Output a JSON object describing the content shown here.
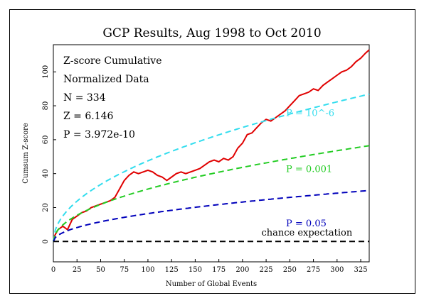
{
  "chart_data": {
    "type": "line",
    "title": "GCP Results, Aug 1998 to Oct 2010",
    "xlabel": "Number of Global Events",
    "ylabel": "Cumsum Z-score",
    "xlim": [
      0,
      334
    ],
    "ylim": [
      -12,
      116
    ],
    "x_ticks": [
      0,
      25,
      50,
      75,
      100,
      125,
      150,
      175,
      200,
      225,
      250,
      275,
      300,
      325
    ],
    "y_ticks": [
      0,
      20,
      40,
      60,
      80,
      100
    ],
    "grid": false,
    "stats": [
      "Z-score Cumulative",
      "Normalized Data",
      "N = 334",
      "Z = 6.146",
      "P = 3.972e-10"
    ],
    "series": [
      {
        "name": "Cumsum Z-score",
        "color": "#e00000",
        "style": "solid",
        "x": [
          0,
          5,
          10,
          15,
          20,
          25,
          30,
          35,
          40,
          45,
          50,
          55,
          60,
          65,
          70,
          75,
          80,
          85,
          90,
          95,
          100,
          105,
          110,
          115,
          120,
          125,
          130,
          135,
          140,
          145,
          150,
          155,
          160,
          165,
          170,
          175,
          180,
          185,
          190,
          195,
          200,
          205,
          210,
          215,
          220,
          225,
          230,
          235,
          240,
          245,
          250,
          255,
          260,
          265,
          270,
          275,
          280,
          285,
          290,
          295,
          300,
          305,
          310,
          315,
          320,
          325,
          330,
          334
        ],
        "y": [
          2,
          7,
          9,
          7,
          13,
          15,
          17,
          18,
          20,
          21,
          22,
          23,
          24,
          26,
          31,
          36,
          39,
          41,
          40,
          41,
          42,
          41,
          39,
          38,
          36,
          38,
          40,
          41,
          40,
          41,
          42,
          43,
          45,
          47,
          48,
          47,
          49,
          48,
          50,
          55,
          58,
          63,
          64,
          67,
          70,
          72,
          71,
          73,
          75,
          77,
          80,
          83,
          86,
          87,
          88,
          90,
          89,
          92,
          94,
          96,
          98,
          100,
          101,
          103,
          106,
          108,
          111,
          113
        ]
      },
      {
        "name": "P = 10^-6",
        "color": "#33ddee",
        "style": "dashed",
        "label": "P = 10^-6",
        "function": "4.753*sqrt(x)"
      },
      {
        "name": "P = 0.001",
        "color": "#22cc22",
        "style": "dashed",
        "label": "P = 0.001",
        "function": "3.09*sqrt(x)"
      },
      {
        "name": "P = 0.05",
        "color": "#0000bb",
        "style": "dashed",
        "label": "P = 0.05",
        "function": "1.645*sqrt(x)"
      },
      {
        "name": "chance expectation",
        "color": "#000000",
        "style": "dashed",
        "label": "chance expectation",
        "function": "0"
      }
    ]
  }
}
